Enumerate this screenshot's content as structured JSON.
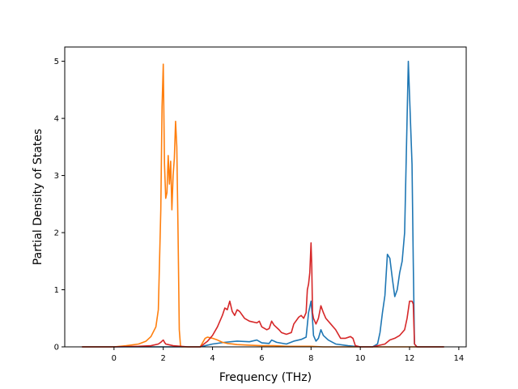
{
  "chart_data": {
    "type": "line",
    "title": "",
    "xlabel": "Frequency (THz)",
    "ylabel": "Partial Density of States",
    "xlim": [
      -2.0,
      14.3
    ],
    "ylim": [
      0,
      5.25
    ],
    "xticks": [
      0,
      2,
      4,
      6,
      8,
      10,
      12,
      14
    ],
    "yticks": [
      0,
      1,
      2,
      3,
      4,
      5
    ],
    "grid": false,
    "legend": "none",
    "series": [
      {
        "color": "#1f77b4",
        "x": [
          -1.3,
          3.5,
          3.7,
          4.0,
          4.5,
          5.0,
          5.5,
          5.8,
          6.0,
          6.3,
          6.4,
          6.6,
          7.0,
          7.3,
          7.6,
          7.8,
          7.9,
          8.0,
          8.05,
          8.1,
          8.2,
          8.3,
          8.4,
          8.5,
          8.7,
          9.0,
          9.5,
          10.0,
          10.5,
          10.7,
          10.8,
          10.9,
          11.0,
          11.1,
          11.2,
          11.3,
          11.4,
          11.5,
          11.6,
          11.7,
          11.8,
          11.85,
          11.9,
          11.95,
          12.0,
          12.05,
          12.1,
          12.15,
          12.2,
          12.3,
          13.4
        ],
        "y": [
          0,
          0,
          0.02,
          0.05,
          0.08,
          0.1,
          0.09,
          0.12,
          0.07,
          0.06,
          0.12,
          0.08,
          0.05,
          0.1,
          0.13,
          0.17,
          0.6,
          0.8,
          0.55,
          0.2,
          0.1,
          0.15,
          0.3,
          0.2,
          0.12,
          0.05,
          0.02,
          0,
          0,
          0.05,
          0.25,
          0.6,
          0.9,
          1.62,
          1.55,
          1.2,
          0.88,
          1.0,
          1.3,
          1.5,
          2.0,
          3.0,
          4.0,
          5.0,
          4.4,
          3.8,
          3.2,
          1.5,
          0.05,
          0,
          0
        ]
      },
      {
        "color": "#ff7f0e",
        "x": [
          -1.3,
          0.0,
          0.5,
          1.0,
          1.3,
          1.5,
          1.7,
          1.8,
          1.9,
          1.95,
          2.0,
          2.05,
          2.1,
          2.15,
          2.2,
          2.25,
          2.3,
          2.35,
          2.4,
          2.45,
          2.5,
          2.55,
          2.6,
          2.65,
          2.7,
          2.75,
          3.0,
          3.5,
          3.7,
          3.8,
          4.0,
          4.2,
          4.4,
          4.6,
          4.8,
          5.0,
          5.5,
          6.0,
          6.5,
          7.0,
          7.5,
          8.0,
          8.5,
          9.0,
          13.4
        ],
        "y": [
          0,
          0,
          0.02,
          0.05,
          0.1,
          0.18,
          0.35,
          0.65,
          2.4,
          4.2,
          4.95,
          3.2,
          2.6,
          2.7,
          3.35,
          2.85,
          3.25,
          2.4,
          3.0,
          3.3,
          3.95,
          3.5,
          2.0,
          0.3,
          0.02,
          0,
          0,
          0,
          0.15,
          0.17,
          0.15,
          0.12,
          0.08,
          0.06,
          0.05,
          0.04,
          0.03,
          0.02,
          0.02,
          0.01,
          0.01,
          0.01,
          0,
          0,
          0
        ]
      },
      {
        "color": "#d62728",
        "x": [
          -1.3,
          0.0,
          1.0,
          1.5,
          1.8,
          1.9,
          1.95,
          2.0,
          2.05,
          2.1,
          2.2,
          2.4,
          2.7,
          3.0,
          3.5,
          3.8,
          4.0,
          4.2,
          4.4,
          4.5,
          4.6,
          4.7,
          4.8,
          4.9,
          5.0,
          5.1,
          5.3,
          5.5,
          5.8,
          5.9,
          6.0,
          6.2,
          6.3,
          6.4,
          6.5,
          6.7,
          6.8,
          7.0,
          7.2,
          7.3,
          7.5,
          7.6,
          7.7,
          7.8,
          7.85,
          7.9,
          7.95,
          8.0,
          8.03,
          8.06,
          8.1,
          8.2,
          8.3,
          8.4,
          8.5,
          8.6,
          8.8,
          9.0,
          9.2,
          9.4,
          9.6,
          9.7,
          9.8,
          10.0,
          10.5,
          11.0,
          11.2,
          11.4,
          11.6,
          11.8,
          11.9,
          12.0,
          12.1,
          12.15,
          12.2,
          12.3,
          13.4
        ],
        "y": [
          0,
          0,
          0.01,
          0.02,
          0.05,
          0.08,
          0.1,
          0.12,
          0.08,
          0.05,
          0.04,
          0.02,
          0.01,
          0,
          0,
          0.1,
          0.2,
          0.35,
          0.55,
          0.68,
          0.65,
          0.8,
          0.62,
          0.55,
          0.65,
          0.62,
          0.5,
          0.45,
          0.42,
          0.45,
          0.35,
          0.3,
          0.32,
          0.45,
          0.38,
          0.3,
          0.25,
          0.22,
          0.25,
          0.4,
          0.52,
          0.55,
          0.5,
          0.6,
          1.0,
          1.1,
          1.3,
          1.82,
          1.4,
          0.6,
          0.5,
          0.4,
          0.5,
          0.72,
          0.6,
          0.5,
          0.4,
          0.3,
          0.15,
          0.15,
          0.18,
          0.15,
          0.02,
          0,
          0,
          0.05,
          0.12,
          0.15,
          0.2,
          0.3,
          0.5,
          0.8,
          0.8,
          0.75,
          0.05,
          0,
          0
        ]
      }
    ]
  }
}
